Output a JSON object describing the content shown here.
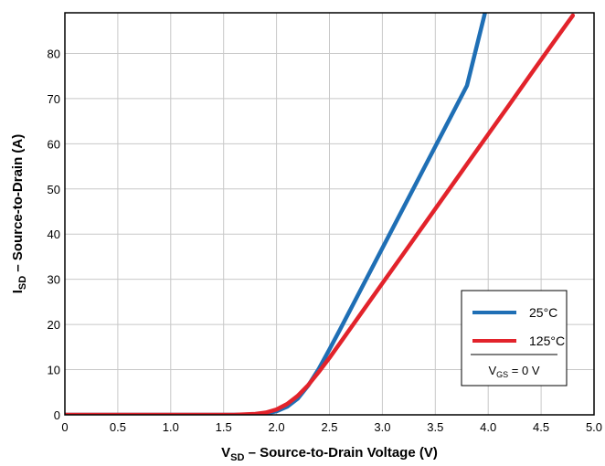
{
  "chart_data": {
    "type": "line",
    "xlabel": "V",
    "xlabel_sub": "SD",
    "xlabel_rest": " – Source-to-Drain Voltage (V)",
    "ylabel": "I",
    "ylabel_sub": "SD",
    "ylabel_rest": " – Source-to-Drain (A)",
    "xlim": [
      0,
      5.0
    ],
    "ylim": [
      0,
      89
    ],
    "x_ticks": [
      0,
      0.5,
      1.0,
      1.5,
      2.0,
      2.5,
      3.0,
      3.5,
      4.0,
      4.5,
      5.0
    ],
    "x_tick_labels": [
      "0",
      "0.5",
      "1.0",
      "1.5",
      "2.0",
      "2.5",
      "3.0",
      "3.5",
      "4.0",
      "4.5",
      "5.0"
    ],
    "y_ticks": [
      0,
      10,
      20,
      30,
      40,
      50,
      60,
      70,
      80
    ],
    "y_tick_labels": [
      "0",
      "10",
      "20",
      "30",
      "40",
      "50",
      "60",
      "70",
      "80"
    ],
    "grid": true,
    "legend_position": "bottom-right",
    "series": [
      {
        "name": "25°C",
        "color": "#1f6fb5",
        "points": [
          [
            0,
            0
          ],
          [
            1.6,
            0
          ],
          [
            1.8,
            0.1
          ],
          [
            1.9,
            0.3
          ],
          [
            2.0,
            0.8
          ],
          [
            2.1,
            1.8
          ],
          [
            2.2,
            3.6
          ],
          [
            2.3,
            6.5
          ],
          [
            2.4,
            10.2
          ],
          [
            2.5,
            14.5
          ],
          [
            2.6,
            18.9
          ],
          [
            2.8,
            27.9
          ],
          [
            3.0,
            36.9
          ],
          [
            3.2,
            45.9
          ],
          [
            3.4,
            54.9
          ],
          [
            3.6,
            63.9
          ],
          [
            3.8,
            72.9
          ],
          [
            3.97,
            89
          ]
        ]
      },
      {
        "name": "125°C",
        "color": "#e2232b",
        "points": [
          [
            0,
            0
          ],
          [
            1.6,
            0
          ],
          [
            1.8,
            0.2
          ],
          [
            1.9,
            0.5
          ],
          [
            2.0,
            1.2
          ],
          [
            2.1,
            2.4
          ],
          [
            2.2,
            4.2
          ],
          [
            2.3,
            6.6
          ],
          [
            2.4,
            9.5
          ],
          [
            2.5,
            12.6
          ],
          [
            2.6,
            15.9
          ],
          [
            2.8,
            22.5
          ],
          [
            3.0,
            29.1
          ],
          [
            3.2,
            35.7
          ],
          [
            3.4,
            42.3
          ],
          [
            3.6,
            48.9
          ],
          [
            3.8,
            55.5
          ],
          [
            4.0,
            62.1
          ],
          [
            4.2,
            68.7
          ],
          [
            4.4,
            75.3
          ],
          [
            4.6,
            81.9
          ],
          [
            4.75,
            86.8
          ],
          [
            4.8,
            88.4
          ]
        ]
      }
    ],
    "legend_condition": "V",
    "legend_condition_sub": "GS",
    "legend_condition_rest": " = 0 V"
  },
  "colors": {
    "grid": "#c8c8c8",
    "frame": "#000000"
  }
}
